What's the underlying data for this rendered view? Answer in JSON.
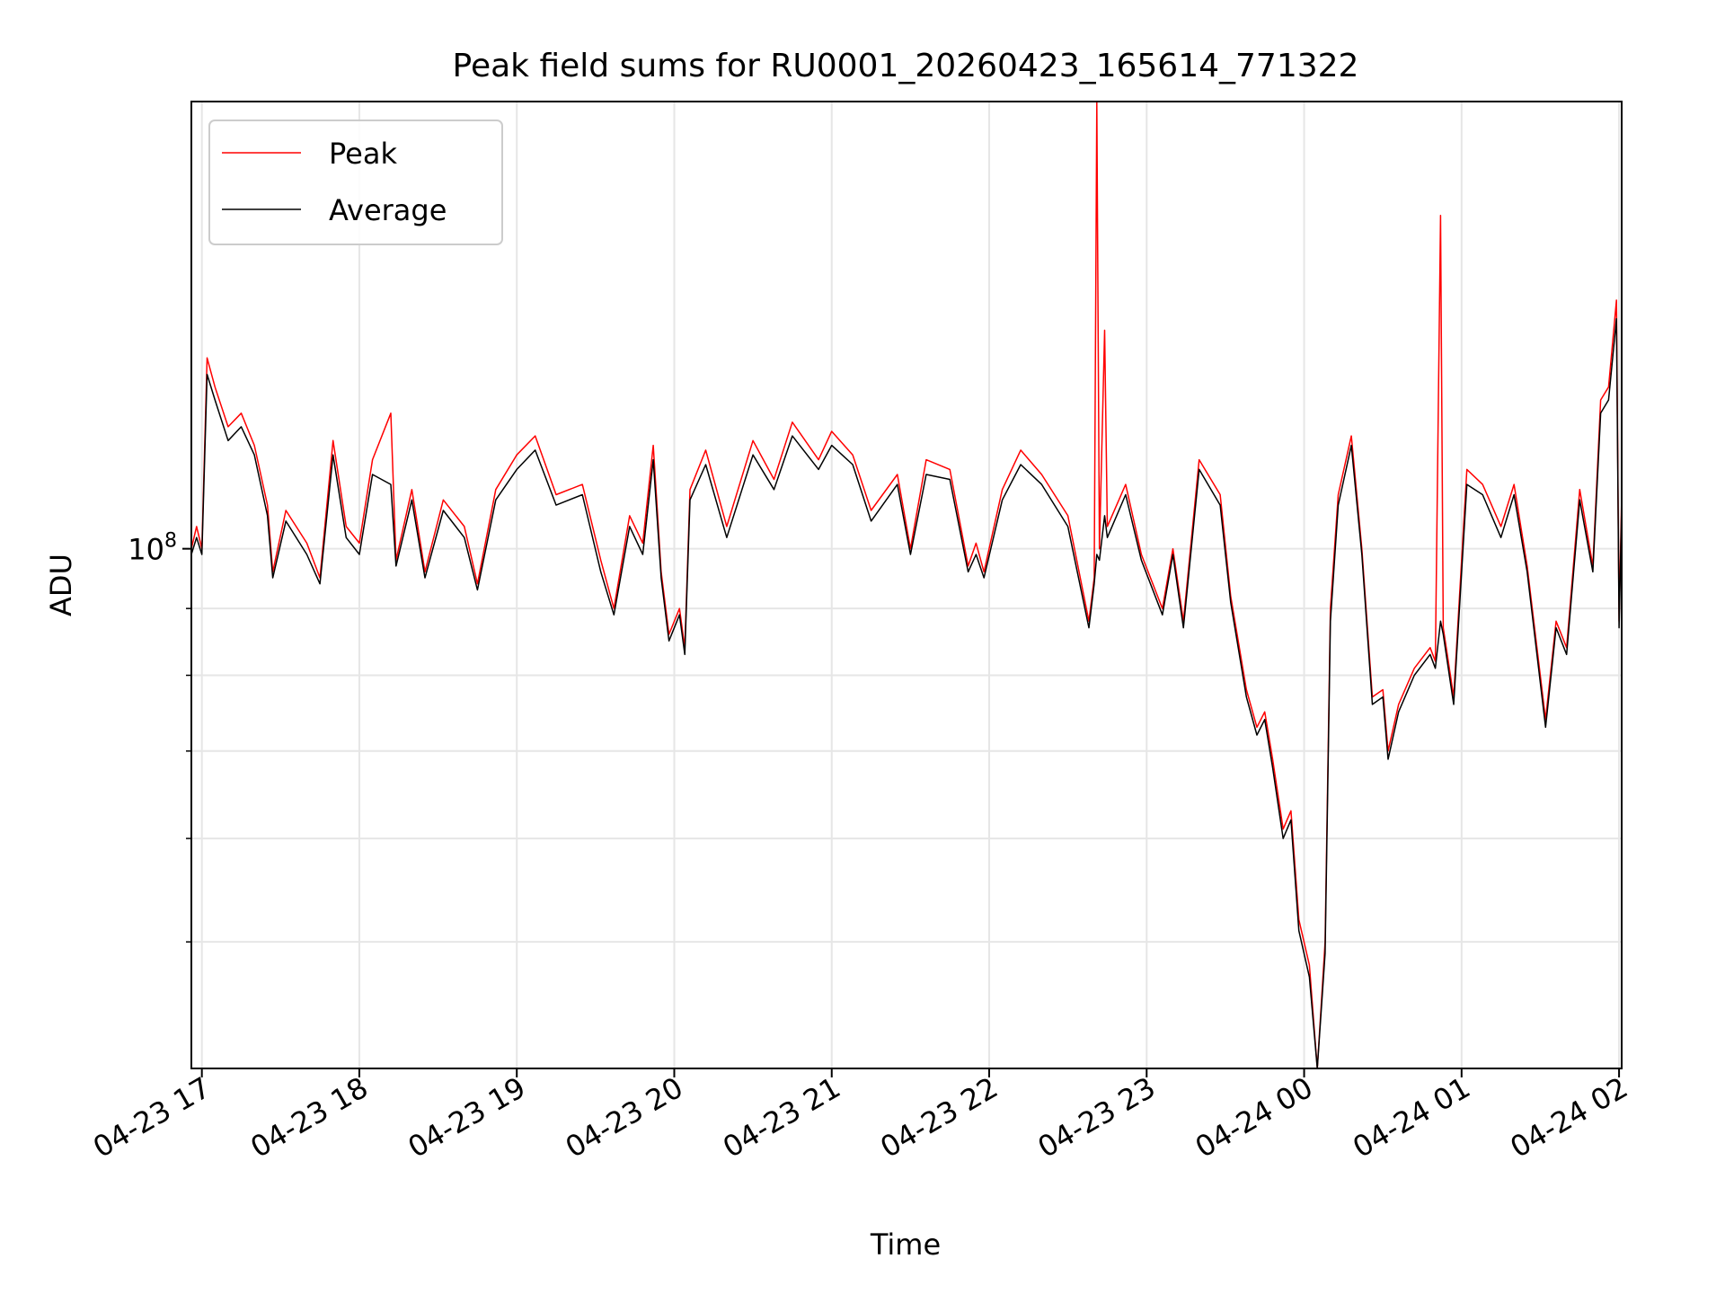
{
  "chart_data": {
    "type": "line",
    "title": "Peak field sums for RU0001_20260423_165614_771322",
    "xlabel": "Time",
    "ylabel": "ADU",
    "xlim": [
      "2026-04-23 16:56",
      "2026-04-24 02:01"
    ],
    "ylim": [
      40000000,
      220000000
    ],
    "yscale": "log",
    "x_ticks": [
      "04-23 17",
      "04-23 18",
      "04-23 19",
      "04-23 20",
      "04-23 21",
      "04-23 22",
      "04-23 23",
      "04-24 00",
      "04-24 01",
      "04-24 02"
    ],
    "y_major_tick_labels": [
      {
        "value": 100000000,
        "base": "10",
        "exp": "8"
      }
    ],
    "y_minor_ticks": [
      50000000,
      60000000,
      70000000,
      80000000,
      90000000
    ],
    "grid": true,
    "legend_position": "top-left",
    "series": [
      {
        "name": "Peak",
        "color": "#ff0000",
        "points": [
          [
            "2026-04-23 16:56",
            100000000
          ],
          [
            "2026-04-23 16:58",
            104000000
          ],
          [
            "2026-04-23 17:00",
            100000000
          ],
          [
            "2026-04-23 17:02",
            140000000
          ],
          [
            "2026-04-23 17:05",
            133000000
          ],
          [
            "2026-04-23 17:10",
            124000000
          ],
          [
            "2026-04-23 17:15",
            127000000
          ],
          [
            "2026-04-23 17:20",
            120000000
          ],
          [
            "2026-04-23 17:25",
            108000000
          ],
          [
            "2026-04-23 17:27",
            96000000
          ],
          [
            "2026-04-23 17:32",
            107000000
          ],
          [
            "2026-04-23 17:40",
            101000000
          ],
          [
            "2026-04-23 17:45",
            95000000
          ],
          [
            "2026-04-23 17:50",
            121000000
          ],
          [
            "2026-04-23 17:55",
            104000000
          ],
          [
            "2026-04-23 18:00",
            101000000
          ],
          [
            "2026-04-23 18:05",
            117000000
          ],
          [
            "2026-04-23 18:12",
            127000000
          ],
          [
            "2026-04-23 18:14",
            98000000
          ],
          [
            "2026-04-23 18:20",
            111000000
          ],
          [
            "2026-04-23 18:25",
            96000000
          ],
          [
            "2026-04-23 18:32",
            109000000
          ],
          [
            "2026-04-23 18:40",
            104000000
          ],
          [
            "2026-04-23 18:45",
            94000000
          ],
          [
            "2026-04-23 18:52",
            111000000
          ],
          [
            "2026-04-23 19:00",
            118000000
          ],
          [
            "2026-04-23 19:07",
            122000000
          ],
          [
            "2026-04-23 19:15",
            110000000
          ],
          [
            "2026-04-23 19:25",
            112000000
          ],
          [
            "2026-04-23 19:32",
            98000000
          ],
          [
            "2026-04-23 19:37",
            90000000
          ],
          [
            "2026-04-23 19:43",
            106000000
          ],
          [
            "2026-04-23 19:48",
            101000000
          ],
          [
            "2026-04-23 19:52",
            120000000
          ],
          [
            "2026-04-23 19:55",
            96000000
          ],
          [
            "2026-04-23 19:58",
            86000000
          ],
          [
            "2026-04-23 20:02",
            90000000
          ],
          [
            "2026-04-23 20:04",
            84000000
          ],
          [
            "2026-04-23 20:06",
            111000000
          ],
          [
            "2026-04-23 20:12",
            119000000
          ],
          [
            "2026-04-23 20:20",
            104000000
          ],
          [
            "2026-04-23 20:30",
            121000000
          ],
          [
            "2026-04-23 20:38",
            113000000
          ],
          [
            "2026-04-23 20:45",
            125000000
          ],
          [
            "2026-04-23 20:55",
            117000000
          ],
          [
            "2026-04-23 21:00",
            123000000
          ],
          [
            "2026-04-23 21:08",
            118000000
          ],
          [
            "2026-04-23 21:15",
            107000000
          ],
          [
            "2026-04-23 21:25",
            114000000
          ],
          [
            "2026-04-23 21:30",
            100000000
          ],
          [
            "2026-04-23 21:36",
            117000000
          ],
          [
            "2026-04-23 21:45",
            115000000
          ],
          [
            "2026-04-23 21:52",
            97000000
          ],
          [
            "2026-04-23 21:55",
            101000000
          ],
          [
            "2026-04-23 21:58",
            96000000
          ],
          [
            "2026-04-23 22:05",
            111000000
          ],
          [
            "2026-04-23 22:12",
            119000000
          ],
          [
            "2026-04-23 22:20",
            114000000
          ],
          [
            "2026-04-23 22:30",
            106000000
          ],
          [
            "2026-04-23 22:38",
            88000000
          ],
          [
            "2026-04-23 22:40",
            95000000
          ],
          [
            "2026-04-23 22:41",
            220000000
          ],
          [
            "2026-04-23 22:42",
            100000000
          ],
          [
            "2026-04-23 22:44",
            147000000
          ],
          [
            "2026-04-23 22:45",
            104000000
          ],
          [
            "2026-04-23 22:52",
            112000000
          ],
          [
            "2026-04-23 22:58",
            99000000
          ],
          [
            "2026-04-23 23:06",
            90000000
          ],
          [
            "2026-04-23 23:10",
            100000000
          ],
          [
            "2026-04-23 23:14",
            88000000
          ],
          [
            "2026-04-23 23:20",
            117000000
          ],
          [
            "2026-04-23 23:28",
            110000000
          ],
          [
            "2026-04-23 23:32",
            92000000
          ],
          [
            "2026-04-23 23:38",
            78000000
          ],
          [
            "2026-04-23 23:42",
            73000000
          ],
          [
            "2026-04-23 23:45",
            75000000
          ],
          [
            "2026-04-23 23:48",
            69000000
          ],
          [
            "2026-04-23 23:52",
            61000000
          ],
          [
            "2026-04-23 23:55",
            63000000
          ],
          [
            "2026-04-23 23:58",
            52000000
          ],
          [
            "2026-04-24 00:02",
            48000000
          ],
          [
            "2026-04-24 00:05",
            40000000
          ],
          [
            "2026-04-24 00:08",
            50000000
          ],
          [
            "2026-04-24 00:10",
            90000000
          ],
          [
            "2026-04-24 00:13",
            110000000
          ],
          [
            "2026-04-24 00:18",
            122000000
          ],
          [
            "2026-04-24 00:22",
            100000000
          ],
          [
            "2026-04-24 00:26",
            77000000
          ],
          [
            "2026-04-24 00:30",
            78000000
          ],
          [
            "2026-04-24 00:32",
            70000000
          ],
          [
            "2026-04-24 00:36",
            76000000
          ],
          [
            "2026-04-24 00:42",
            81000000
          ],
          [
            "2026-04-24 00:48",
            84000000
          ],
          [
            "2026-04-24 00:50",
            82000000
          ],
          [
            "2026-04-24 00:52",
            180000000
          ],
          [
            "2026-04-24 00:53",
            87000000
          ],
          [
            "2026-04-24 00:57",
            77000000
          ],
          [
            "2026-04-24 01:02",
            115000000
          ],
          [
            "2026-04-24 01:08",
            112000000
          ],
          [
            "2026-04-24 01:15",
            104000000
          ],
          [
            "2026-04-24 01:20",
            112000000
          ],
          [
            "2026-04-24 01:25",
            97000000
          ],
          [
            "2026-04-24 01:32",
            74000000
          ],
          [
            "2026-04-24 01:36",
            88000000
          ],
          [
            "2026-04-24 01:40",
            84000000
          ],
          [
            "2026-04-24 01:45",
            111000000
          ],
          [
            "2026-04-24 01:50",
            97000000
          ],
          [
            "2026-04-24 01:53",
            130000000
          ],
          [
            "2026-04-24 01:56",
            133000000
          ],
          [
            "2026-04-24 01:59",
            155000000
          ],
          [
            "2026-04-24 02:00",
            88000000
          ],
          [
            "2026-04-24 02:01",
            110000000
          ]
        ]
      },
      {
        "name": "Average",
        "color": "#000000",
        "points": [
          [
            "2026-04-23 16:56",
            99000000
          ],
          [
            "2026-04-23 16:58",
            102000000
          ],
          [
            "2026-04-23 17:00",
            99000000
          ],
          [
            "2026-04-23 17:02",
            136000000
          ],
          [
            "2026-04-23 17:05",
            130000000
          ],
          [
            "2026-04-23 17:10",
            121000000
          ],
          [
            "2026-04-23 17:15",
            124000000
          ],
          [
            "2026-04-23 17:20",
            118000000
          ],
          [
            "2026-04-23 17:25",
            106000000
          ],
          [
            "2026-04-23 17:27",
            95000000
          ],
          [
            "2026-04-23 17:32",
            105000000
          ],
          [
            "2026-04-23 17:40",
            99000000
          ],
          [
            "2026-04-23 17:45",
            94000000
          ],
          [
            "2026-04-23 17:50",
            118000000
          ],
          [
            "2026-04-23 17:55",
            102000000
          ],
          [
            "2026-04-23 18:00",
            99000000
          ],
          [
            "2026-04-23 18:05",
            114000000
          ],
          [
            "2026-04-23 18:12",
            112000000
          ],
          [
            "2026-04-23 18:14",
            97000000
          ],
          [
            "2026-04-23 18:20",
            109000000
          ],
          [
            "2026-04-23 18:25",
            95000000
          ],
          [
            "2026-04-23 18:32",
            107000000
          ],
          [
            "2026-04-23 18:40",
            102000000
          ],
          [
            "2026-04-23 18:45",
            93000000
          ],
          [
            "2026-04-23 18:52",
            109000000
          ],
          [
            "2026-04-23 19:00",
            115000000
          ],
          [
            "2026-04-23 19:07",
            119000000
          ],
          [
            "2026-04-23 19:15",
            108000000
          ],
          [
            "2026-04-23 19:25",
            110000000
          ],
          [
            "2026-04-23 19:32",
            96000000
          ],
          [
            "2026-04-23 19:37",
            89000000
          ],
          [
            "2026-04-23 19:43",
            104000000
          ],
          [
            "2026-04-23 19:48",
            99000000
          ],
          [
            "2026-04-23 19:52",
            117000000
          ],
          [
            "2026-04-23 19:55",
            95000000
          ],
          [
            "2026-04-23 19:58",
            85000000
          ],
          [
            "2026-04-23 20:02",
            89000000
          ],
          [
            "2026-04-23 20:04",
            83000000
          ],
          [
            "2026-04-23 20:06",
            109000000
          ],
          [
            "2026-04-23 20:12",
            116000000
          ],
          [
            "2026-04-23 20:20",
            102000000
          ],
          [
            "2026-04-23 20:30",
            118000000
          ],
          [
            "2026-04-23 20:38",
            111000000
          ],
          [
            "2026-04-23 20:45",
            122000000
          ],
          [
            "2026-04-23 20:55",
            115000000
          ],
          [
            "2026-04-23 21:00",
            120000000
          ],
          [
            "2026-04-23 21:08",
            116000000
          ],
          [
            "2026-04-23 21:15",
            105000000
          ],
          [
            "2026-04-23 21:25",
            112000000
          ],
          [
            "2026-04-23 21:30",
            99000000
          ],
          [
            "2026-04-23 21:36",
            114000000
          ],
          [
            "2026-04-23 21:45",
            113000000
          ],
          [
            "2026-04-23 21:52",
            96000000
          ],
          [
            "2026-04-23 21:55",
            99000000
          ],
          [
            "2026-04-23 21:58",
            95000000
          ],
          [
            "2026-04-23 22:05",
            109000000
          ],
          [
            "2026-04-23 22:12",
            116000000
          ],
          [
            "2026-04-23 22:20",
            112000000
          ],
          [
            "2026-04-23 22:30",
            104000000
          ],
          [
            "2026-04-23 22:38",
            87000000
          ],
          [
            "2026-04-23 22:40",
            94000000
          ],
          [
            "2026-04-23 22:41",
            99000000
          ],
          [
            "2026-04-23 22:42",
            98000000
          ],
          [
            "2026-04-23 22:44",
            106000000
          ],
          [
            "2026-04-23 22:45",
            102000000
          ],
          [
            "2026-04-23 22:52",
            110000000
          ],
          [
            "2026-04-23 22:58",
            98000000
          ],
          [
            "2026-04-23 23:06",
            89000000
          ],
          [
            "2026-04-23 23:10",
            99000000
          ],
          [
            "2026-04-23 23:14",
            87000000
          ],
          [
            "2026-04-23 23:20",
            115000000
          ],
          [
            "2026-04-23 23:28",
            108000000
          ],
          [
            "2026-04-23 23:32",
            91000000
          ],
          [
            "2026-04-23 23:38",
            77000000
          ],
          [
            "2026-04-23 23:42",
            72000000
          ],
          [
            "2026-04-23 23:45",
            74000000
          ],
          [
            "2026-04-23 23:48",
            68000000
          ],
          [
            "2026-04-23 23:52",
            60000000
          ],
          [
            "2026-04-23 23:55",
            62000000
          ],
          [
            "2026-04-23 23:58",
            51000000
          ],
          [
            "2026-04-24 00:02",
            47000000
          ],
          [
            "2026-04-24 00:05",
            40000000
          ],
          [
            "2026-04-24 00:08",
            49000000
          ],
          [
            "2026-04-24 00:10",
            88000000
          ],
          [
            "2026-04-24 00:13",
            108000000
          ],
          [
            "2026-04-24 00:18",
            120000000
          ],
          [
            "2026-04-24 00:22",
            99000000
          ],
          [
            "2026-04-24 00:26",
            76000000
          ],
          [
            "2026-04-24 00:30",
            77000000
          ],
          [
            "2026-04-24 00:32",
            69000000
          ],
          [
            "2026-04-24 00:36",
            75000000
          ],
          [
            "2026-04-24 00:42",
            80000000
          ],
          [
            "2026-04-24 00:48",
            83000000
          ],
          [
            "2026-04-24 00:50",
            81000000
          ],
          [
            "2026-04-24 00:52",
            88000000
          ],
          [
            "2026-04-24 00:53",
            86000000
          ],
          [
            "2026-04-24 00:57",
            76000000
          ],
          [
            "2026-04-24 01:02",
            112000000
          ],
          [
            "2026-04-24 01:08",
            110000000
          ],
          [
            "2026-04-24 01:15",
            102000000
          ],
          [
            "2026-04-24 01:20",
            110000000
          ],
          [
            "2026-04-24 01:25",
            96000000
          ],
          [
            "2026-04-24 01:32",
            73000000
          ],
          [
            "2026-04-24 01:36",
            87000000
          ],
          [
            "2026-04-24 01:40",
            83000000
          ],
          [
            "2026-04-24 01:45",
            109000000
          ],
          [
            "2026-04-24 01:50",
            96000000
          ],
          [
            "2026-04-24 01:53",
            127000000
          ],
          [
            "2026-04-24 01:56",
            130000000
          ],
          [
            "2026-04-24 01:59",
            150000000
          ],
          [
            "2026-04-24 02:00",
            87000000
          ],
          [
            "2026-04-24 02:01",
            108000000
          ]
        ]
      }
    ]
  }
}
